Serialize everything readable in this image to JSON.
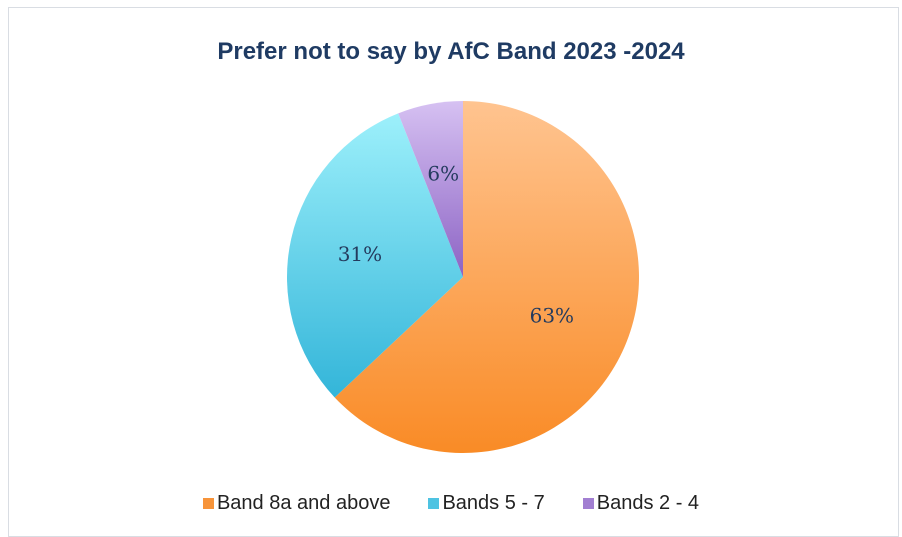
{
  "chart_data": {
    "type": "pie",
    "title": "Prefer not to say by AfC Band 2023 -2024",
    "categories": [
      "Band 8a and above",
      "Bands 5 - 7",
      "Bands 2 - 4"
    ],
    "values": [
      63,
      31,
      6
    ],
    "data_labels": [
      "63%",
      "31%",
      "6%"
    ],
    "colors": [
      "#f7943a",
      "#4ec3e2",
      "#a27fd2"
    ],
    "legend_position": "bottom",
    "start_angle": "12 o'clock, clockwise"
  }
}
